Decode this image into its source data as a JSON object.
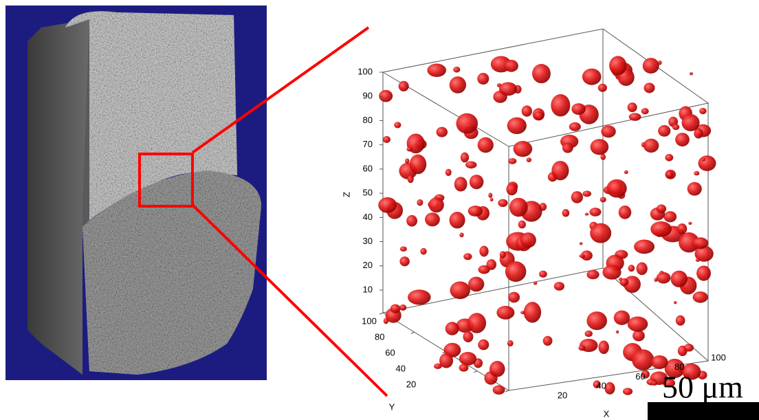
{
  "plot": {
    "z_axis": {
      "label": "Z",
      "ticks": [
        10,
        20,
        30,
        40,
        50,
        60,
        70,
        80,
        90,
        100
      ]
    },
    "y_axis": {
      "label": "Y",
      "ticks": [
        20,
        40,
        60,
        80,
        100
      ]
    },
    "x_axis": {
      "label": "X",
      "ticks": [
        20,
        40,
        60,
        80,
        100
      ]
    }
  },
  "scale_bar": {
    "label": "50 μm"
  }
}
